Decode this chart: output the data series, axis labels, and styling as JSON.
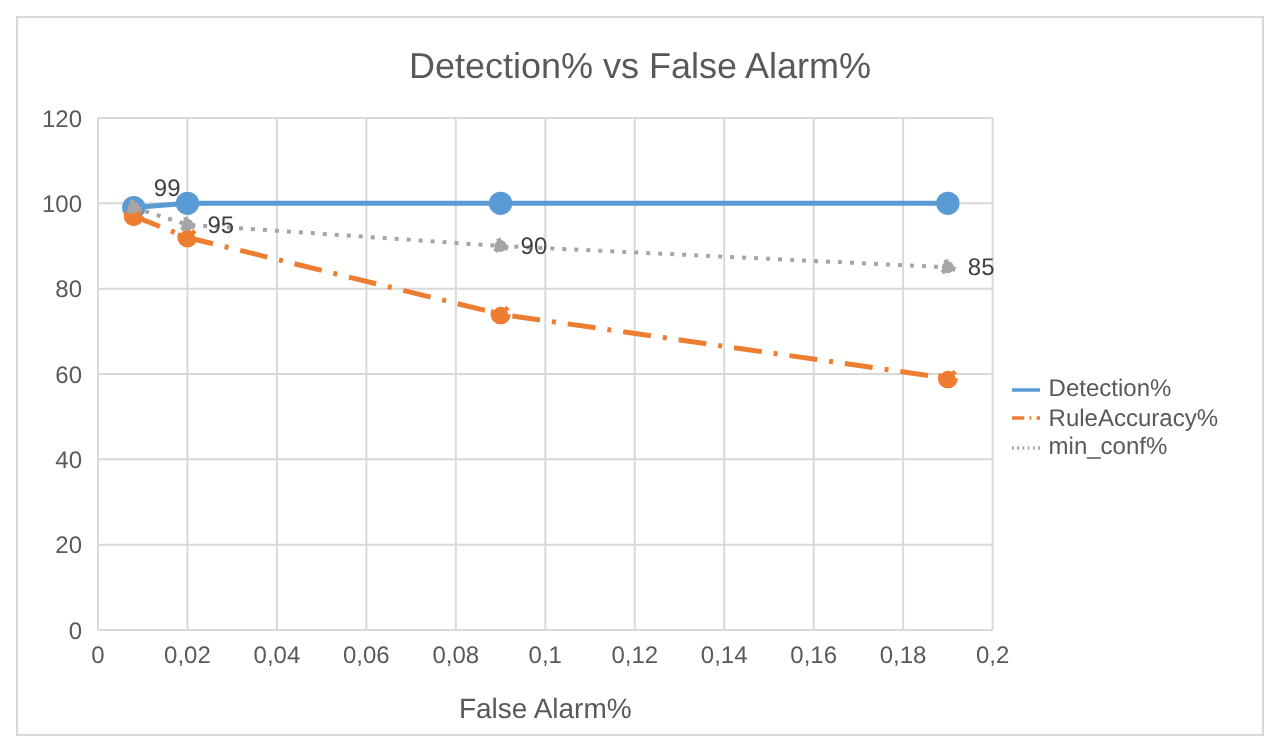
{
  "chart_data": {
    "type": "line",
    "title": "Detection% vs False Alarm%",
    "xlabel": "False Alarm%",
    "x": [
      0.008,
      0.02,
      0.09,
      0.19
    ],
    "series": [
      {
        "name": "Detection%",
        "color": "#5b9bd5",
        "values": [
          99,
          100,
          100,
          100
        ],
        "line_style": "solid"
      },
      {
        "name": "RuleAccuracy%",
        "color": "#ed7d31",
        "values": [
          97,
          92,
          74,
          59
        ],
        "line_style": "dashed"
      },
      {
        "name": "min_conf%",
        "color": "#a5a5a5",
        "values": [
          99,
          95,
          90,
          85
        ],
        "line_style": "dotted",
        "value_labels": [
          "99",
          "95",
          "90",
          "85"
        ]
      }
    ],
    "xlim": [
      0,
      0.2
    ],
    "xticks": [
      0,
      {
        "value": 0.02,
        "label": "0,02"
      },
      {
        "value": 0.04,
        "label": "0,04"
      },
      {
        "value": 0.06,
        "label": "0,06"
      },
      {
        "value": 0.08,
        "label": "0,08"
      },
      {
        "value": 0.1,
        "label": "0,1"
      },
      {
        "value": 0.12,
        "label": "0,12"
      },
      {
        "value": 0.14,
        "label": "0,14"
      },
      {
        "value": 0.16,
        "label": "0,16"
      },
      {
        "value": 0.18,
        "label": "0,18"
      },
      {
        "value": 0.2,
        "label": "0,2"
      }
    ],
    "ylim": [
      0,
      120
    ],
    "yticks": [
      0,
      20,
      40,
      60,
      80,
      100,
      120
    ],
    "grid": true,
    "legend": "right",
    "marker": "circle"
  }
}
